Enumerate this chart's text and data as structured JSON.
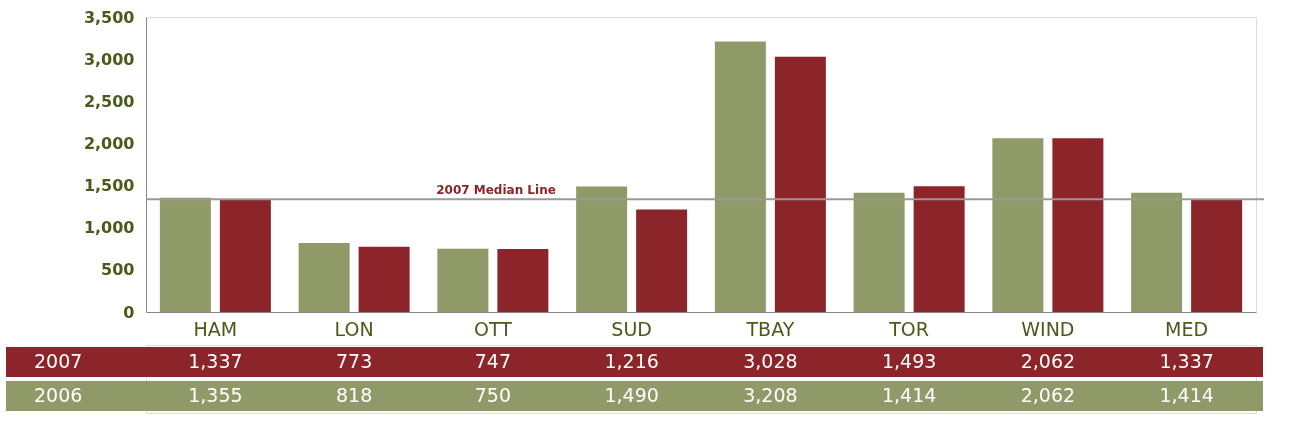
{
  "chart_data": {
    "type": "bar",
    "categories": [
      "HAM",
      "LON",
      "OTT",
      "SUD",
      "TBAY",
      "TOR",
      "WIND",
      "MED"
    ],
    "series": [
      {
        "name": "2006",
        "color": "#8f9a68",
        "values": [
          1355,
          818,
          750,
          1490,
          3208,
          1414,
          2062,
          1414
        ],
        "value_labels": [
          "1,355",
          "818",
          "750",
          "1,490",
          "3,208",
          "1,414",
          "2,062",
          "1,414"
        ]
      },
      {
        "name": "2007",
        "color": "#8b2529",
        "values": [
          1337,
          773,
          747,
          1216,
          3028,
          1493,
          2062,
          1337
        ],
        "value_labels": [
          "1,337",
          "773",
          "747",
          "1,216",
          "3,028",
          "1,493",
          "2,062",
          "1,337"
        ]
      }
    ],
    "ylim": [
      0,
      3500
    ],
    "yticks": [
      0,
      {
        "value": 500,
        "label": "500"
      },
      {
        "value": 1000,
        "label": "1,000"
      },
      {
        "value": 1500,
        "label": "1,500"
      },
      {
        "value": 2000,
        "label": "2,000"
      },
      {
        "value": 2500,
        "label": "2,500"
      },
      {
        "value": 3000,
        "label": "3,000"
      },
      {
        "value": 3500,
        "label": "3,500"
      }
    ],
    "grid": false,
    "ref_lines": [
      {
        "axis": "y",
        "value": 1337,
        "label": "2007 Median Line",
        "color": "#999999"
      }
    ]
  }
}
